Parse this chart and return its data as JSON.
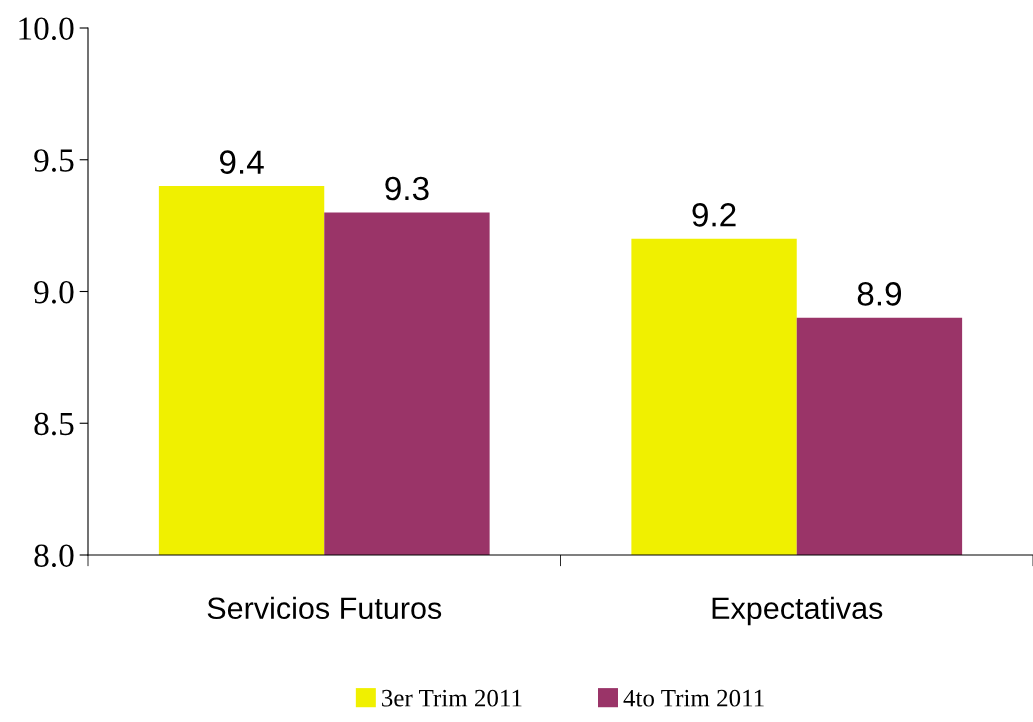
{
  "chart_data": {
    "type": "bar",
    "categories": [
      "Servicios Futuros",
      "Expectativas"
    ],
    "series": [
      {
        "name": "3er Trim 2011",
        "color": "#f0f000",
        "values": [
          9.4,
          9.2
        ]
      },
      {
        "name": "4to Trim 2011",
        "color": "#9a3468",
        "values": [
          9.3,
          8.9
        ]
      }
    ],
    "ylim": [
      8.0,
      10.0
    ],
    "yticks": [
      {
        "value": 8.0,
        "label": "8.0"
      },
      {
        "value": 8.5,
        "label": "8.5"
      },
      {
        "value": 9.0,
        "label": "9.0"
      },
      {
        "value": 9.5,
        "label": "9.5"
      },
      {
        "value": 10.0,
        "label": "10.0"
      }
    ],
    "data_labels": true,
    "grid": false,
    "legend": "bottom"
  }
}
